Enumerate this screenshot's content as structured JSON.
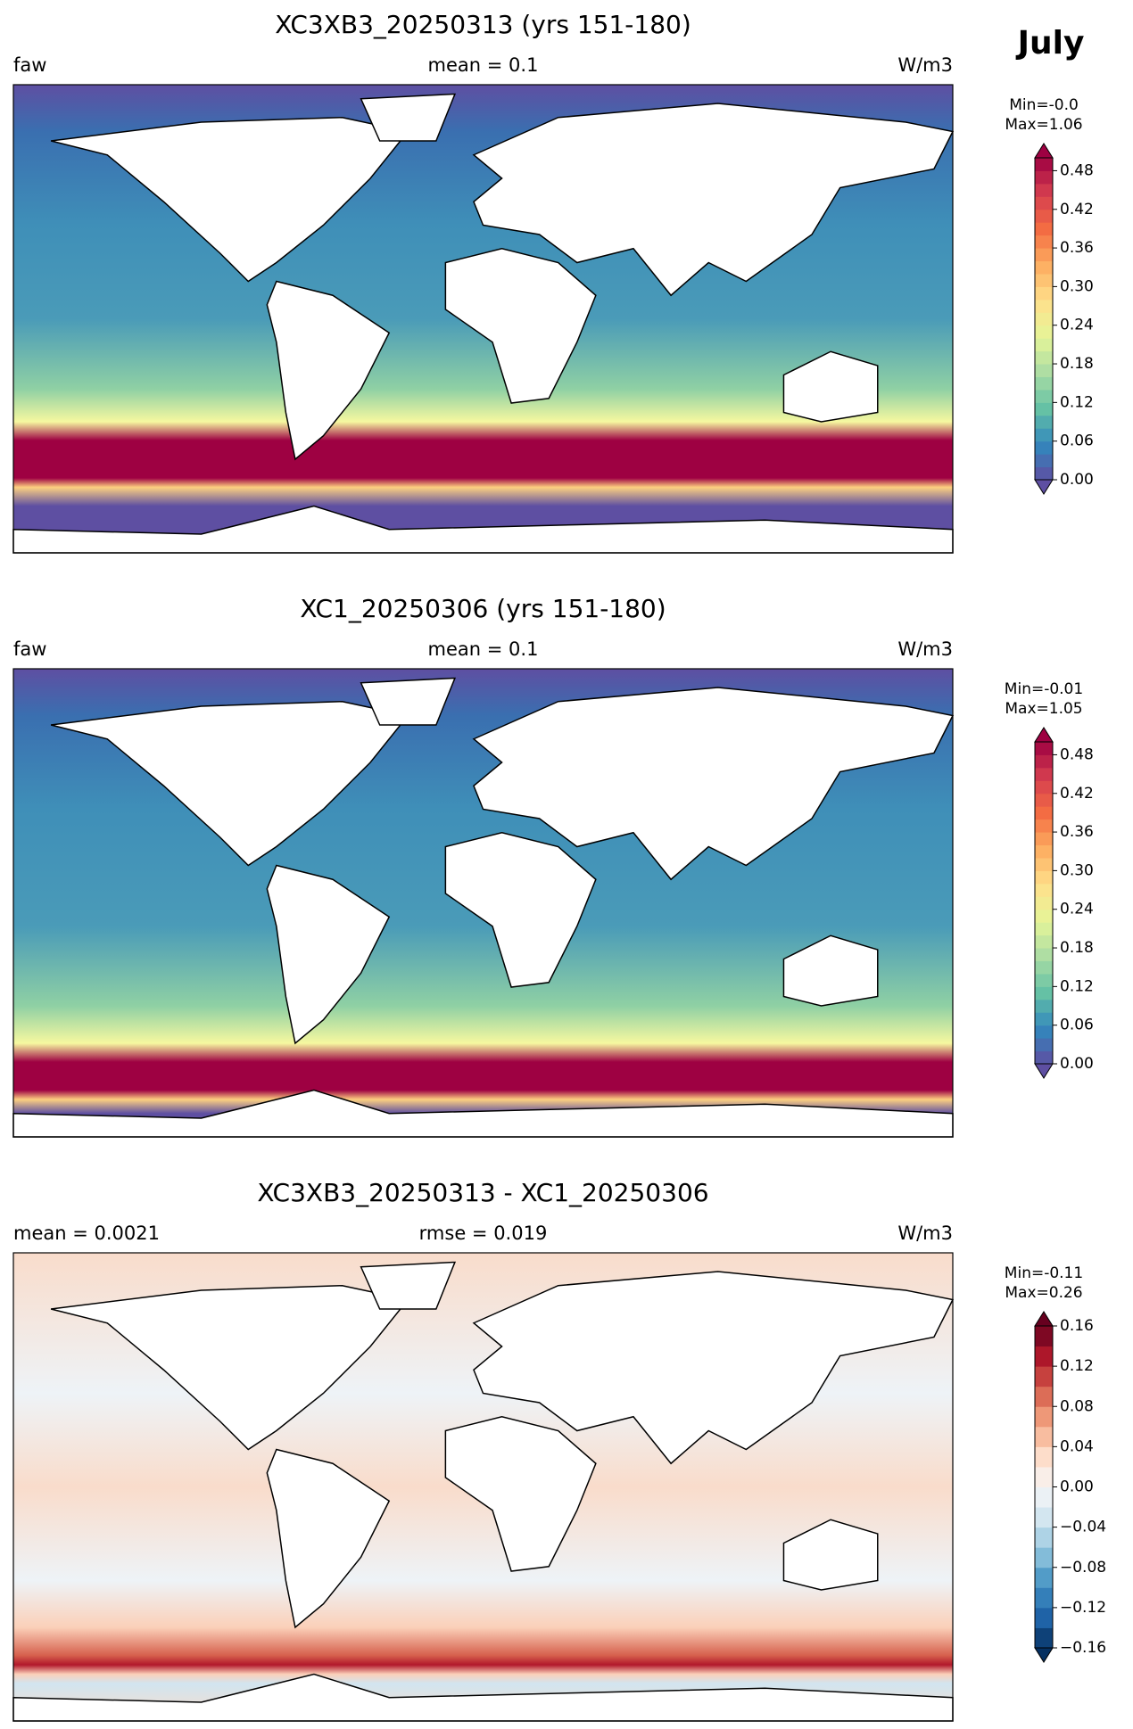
{
  "figure_title": "July",
  "panels": [
    {
      "title": "XC3XB3_20250313 (yrs 151-180)",
      "left_label": "faw",
      "center_label": "mean = 0.1",
      "right_label": "W/m3",
      "min_label": "Min=-0.0",
      "max_label": "Max=1.06",
      "colorbar": {
        "lim": [
          0,
          0.5
        ],
        "ticks": [
          {
            "value": 0,
            "label": "0.00"
          },
          {
            "value": 0.06,
            "label": "0.06"
          },
          {
            "value": 0.12,
            "label": "0.12"
          },
          {
            "value": 0.18,
            "label": "0.18"
          },
          {
            "value": 0.24,
            "label": "0.24"
          },
          {
            "value": 0.3,
            "label": "0.30"
          },
          {
            "value": 0.36,
            "label": "0.36"
          },
          {
            "value": 0.42,
            "label": "0.42"
          },
          {
            "value": 0.48,
            "label": "0.48"
          }
        ]
      }
    },
    {
      "title": "XC1_20250306 (yrs 151-180)",
      "left_label": "faw",
      "center_label": "mean = 0.1",
      "right_label": "W/m3",
      "min_label": "Min=-0.01",
      "max_label": "Max=1.05",
      "colorbar": {
        "lim": [
          0,
          0.5
        ],
        "ticks": [
          {
            "value": 0,
            "label": "0.00"
          },
          {
            "value": 0.06,
            "label": "0.06"
          },
          {
            "value": 0.12,
            "label": "0.12"
          },
          {
            "value": 0.18,
            "label": "0.18"
          },
          {
            "value": 0.24,
            "label": "0.24"
          },
          {
            "value": 0.3,
            "label": "0.30"
          },
          {
            "value": 0.36,
            "label": "0.36"
          },
          {
            "value": 0.42,
            "label": "0.42"
          },
          {
            "value": 0.48,
            "label": "0.48"
          }
        ]
      }
    },
    {
      "title": "XC3XB3_20250313 - XC1_20250306",
      "left_label": "mean = 0.0021",
      "center_label": "rmse = 0.019",
      "right_label": "W/m3",
      "min_label": "Min=-0.11",
      "max_label": "Max=0.26",
      "colorbar": {
        "lim": [
          -0.16,
          0.16
        ],
        "ticks": [
          {
            "value": -0.16,
            "label": "−0.16"
          },
          {
            "value": -0.12,
            "label": "−0.12"
          },
          {
            "value": -0.08,
            "label": "−0.08"
          },
          {
            "value": -0.04,
            "label": "−0.04"
          },
          {
            "value": 0,
            "label": "0.00"
          },
          {
            "value": 0.04,
            "label": "0.04"
          },
          {
            "value": 0.08,
            "label": "0.08"
          },
          {
            "value": 0.12,
            "label": "0.12"
          },
          {
            "value": 0.16,
            "label": "0.16"
          }
        ]
      }
    }
  ]
}
